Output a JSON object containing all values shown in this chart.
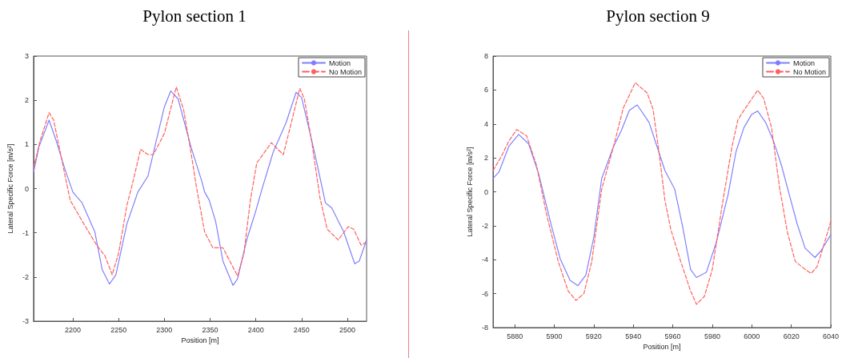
{
  "chart_data": [
    {
      "type": "line",
      "title": "Pylon section 1",
      "xlabel": "Position [m]",
      "ylabel": "Lateral Specific Force [m/s²]",
      "xlim": [
        2157,
        2521
      ],
      "ylim": [
        -3,
        3
      ],
      "xticks": [
        2200,
        2250,
        2300,
        2350,
        2400,
        2450,
        2500
      ],
      "yticks": [
        -3,
        -2,
        -1,
        0,
        1,
        2,
        3
      ],
      "grid": false,
      "legend": "top right",
      "marker": "none",
      "series": [
        {
          "name": "Motion",
          "color": "#8080ff",
          "line_style": "solid",
          "x": [
            2157,
            2163,
            2174,
            2182,
            2191,
            2200,
            2210,
            2224,
            2232,
            2240,
            2247,
            2259,
            2271,
            2282,
            2291,
            2300,
            2307,
            2315,
            2329,
            2341,
            2344,
            2349,
            2356,
            2364,
            2375,
            2380,
            2390,
            2400,
            2407,
            2419,
            2433,
            2444,
            2450,
            2464,
            2476,
            2483,
            2496,
            2508,
            2513,
            2521
          ],
          "values": [
            0.37,
            0.95,
            1.55,
            1.07,
            0.46,
            -0.08,
            -0.32,
            -0.98,
            -1.83,
            -2.16,
            -1.95,
            -0.8,
            -0.08,
            0.28,
            1.07,
            1.85,
            2.21,
            2.03,
            0.95,
            0.16,
            -0.08,
            -0.26,
            -0.74,
            -1.64,
            -2.19,
            -2.04,
            -1.16,
            -0.5,
            0.01,
            0.83,
            1.49,
            2.18,
            2.06,
            0.83,
            -0.32,
            -0.44,
            -0.98,
            -1.7,
            -1.64,
            -1.16
          ]
        },
        {
          "name": "No Motion",
          "color": "#ff6060",
          "line_style": "dashed",
          "x": [
            2157,
            2164,
            2174,
            2179,
            2188,
            2197,
            2212,
            2226,
            2235,
            2243,
            2250,
            2259,
            2265,
            2274,
            2282,
            2288,
            2300,
            2313,
            2321,
            2329,
            2335,
            2344,
            2353,
            2364,
            2373,
            2380,
            2387,
            2394,
            2401,
            2417,
            2424,
            2430,
            2438,
            2448,
            2453,
            2461,
            2470,
            2478,
            2490,
            2501,
            2507,
            2515,
            2520
          ],
          "values": [
            0.46,
            1.07,
            1.72,
            1.55,
            0.64,
            -0.26,
            -0.8,
            -1.28,
            -1.52,
            -1.95,
            -1.46,
            -0.38,
            0.1,
            0.89,
            0.77,
            0.77,
            1.25,
            2.3,
            1.79,
            0.83,
            0.04,
            -0.98,
            -1.34,
            -1.34,
            -1.7,
            -1.98,
            -1.46,
            -0.26,
            0.58,
            1.04,
            0.89,
            0.77,
            1.43,
            2.27,
            2.03,
            1.07,
            -0.2,
            -0.92,
            -1.16,
            -0.86,
            -0.92,
            -1.28,
            -1.22
          ]
        }
      ]
    },
    {
      "type": "line",
      "title": "Pylon section 9",
      "xlabel": "Position [m]",
      "ylabel": "Lateral Specific Force [m/s²]",
      "xlim": [
        5869,
        6040
      ],
      "ylim": [
        -8,
        8
      ],
      "xticks": [
        5880,
        5900,
        5920,
        5940,
        5960,
        5980,
        6000,
        6020,
        6040
      ],
      "yticks": [
        -8,
        -6,
        -4,
        -2,
        0,
        2,
        4,
        6,
        8
      ],
      "grid": false,
      "legend": "top right",
      "marker": "none",
      "series": [
        {
          "name": "Motion",
          "color": "#8080ff",
          "line_style": "solid",
          "x": [
            5869,
            5872,
            5877,
            5882,
            5887,
            5892,
            5898,
            5903,
            5908,
            5912,
            5916,
            5920,
            5924,
            5930,
            5934,
            5938,
            5942,
            5948,
            5952,
            5956,
            5961,
            5965,
            5969,
            5972,
            5977,
            5982,
            5988,
            5992,
            5996,
            6000,
            6003,
            6007,
            6011,
            6015,
            6019,
            6023,
            6027,
            6032,
            6035,
            6040
          ],
          "values": [
            0.78,
            1.17,
            2.68,
            3.38,
            2.83,
            1.1,
            -1.74,
            -3.95,
            -5.21,
            -5.53,
            -4.9,
            -2.69,
            0.78,
            2.67,
            3.62,
            4.8,
            5.12,
            4.09,
            2.68,
            1.26,
            0.15,
            -2.06,
            -4.57,
            -5.05,
            -4.74,
            -3.0,
            -0.17,
            2.36,
            3.78,
            4.57,
            4.76,
            4.09,
            2.99,
            1.57,
            -0.17,
            -1.9,
            -3.32,
            -3.87,
            -3.48,
            -2.53
          ]
        },
        {
          "name": "No Motion",
          "color": "#ff6060",
          "line_style": "dashed",
          "x": [
            5869,
            5873,
            5877,
            5881,
            5886,
            5891,
            5896,
            5902,
            5907,
            5911,
            5915,
            5919,
            5924,
            5930,
            5935,
            5941,
            5947,
            5950,
            5953,
            5956,
            5959,
            5964,
            5969,
            5972,
            5976,
            5980,
            5985,
            5990,
            5993,
            5996,
            6003,
            6006,
            6010,
            6014,
            6018,
            6022,
            6027,
            6030,
            6033,
            6036,
            6040
          ],
          "values": [
            1.25,
            2.04,
            2.99,
            3.67,
            3.3,
            1.57,
            -1.27,
            -4.1,
            -5.84,
            -6.4,
            -6.0,
            -4.1,
            0.15,
            2.67,
            4.96,
            6.43,
            5.83,
            4.88,
            2.36,
            -0.48,
            -2.21,
            -4.1,
            -5.84,
            -6.63,
            -6.16,
            -4.57,
            -0.8,
            2.67,
            4.25,
            4.8,
            5.99,
            5.51,
            3.78,
            0.31,
            -2.37,
            -4.1,
            -4.57,
            -4.81,
            -4.42,
            -3.32,
            -1.74
          ]
        }
      ]
    }
  ]
}
